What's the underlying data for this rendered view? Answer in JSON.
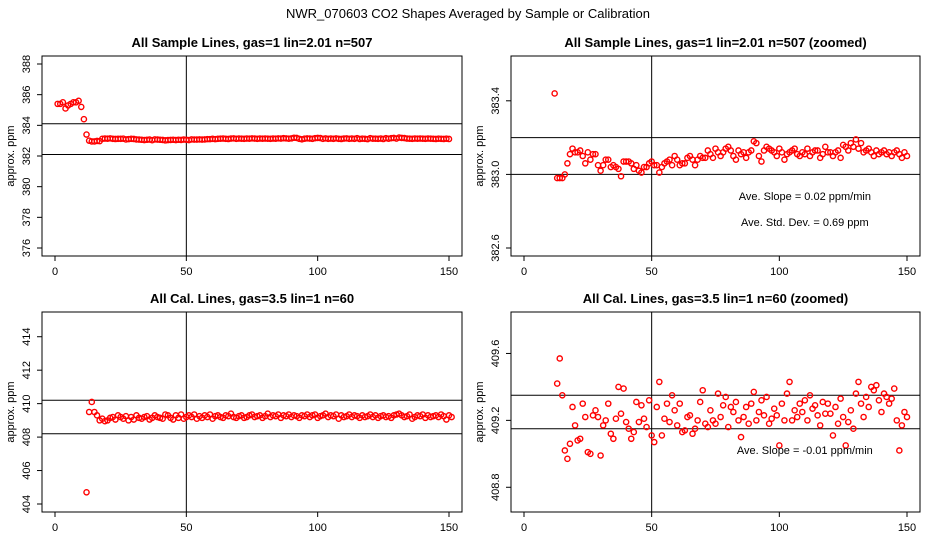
{
  "figure": {
    "title": "NWR_070603  CO2 Shapes Averaged by Sample or Calibration"
  },
  "colors": {
    "points": "#ff0000",
    "lines": "#000000"
  },
  "chart_data": [
    {
      "type": "scatter",
      "title": "All Sample Lines, gas=1 lin=2.01 n=507",
      "ylabel": "approx. ppm",
      "xlim": [
        0,
        150
      ],
      "ylim": [
        376,
        388
      ],
      "xticks": [
        0,
        50,
        100,
        150
      ],
      "yticks": [
        376,
        378,
        380,
        382,
        384,
        386,
        388
      ],
      "ytick_labels": [
        "376",
        "378",
        "380",
        "382",
        "384",
        "386",
        "388"
      ],
      "hlines": [
        384.1,
        382.1
      ],
      "vline": 50,
      "annotations": [],
      "series": [
        {
          "x_start": 1,
          "x_step": 1,
          "y": [
            385.4,
            385.4,
            385.5,
            385.1,
            385.3,
            385.4,
            385.5,
            385.5,
            385.6,
            385.2,
            384.4,
            383.4,
            383.0,
            382.95,
            382.95,
            382.98,
            382.97,
            383.12,
            383.14,
            383.13,
            383.15,
            383.12,
            383.11,
            383.12,
            383.12,
            383.13,
            383.08,
            383.1,
            383.12,
            383.11,
            383.08,
            383.07,
            383.06,
            383.04,
            383.06,
            383.07,
            383.03,
            383.08,
            383.07,
            383.06,
            383.05,
            383.02,
            383.04,
            383.05,
            383.06,
            383.04,
            383.06,
            383.05,
            383.07,
            383.06,
            383.04,
            383.08,
            383.07,
            383.07,
            383.08,
            383.07,
            383.08,
            383.1,
            383.1,
            383.12,
            383.1,
            383.12,
            383.13,
            383.14,
            383.12,
            383.11,
            383.14,
            383.15,
            383.12,
            383.14,
            383.13,
            383.12,
            383.14,
            383.13,
            383.15,
            383.14,
            383.12,
            383.14,
            383.13,
            383.14,
            383.13,
            383.12,
            383.14,
            383.13,
            383.15,
            383.14,
            383.16,
            383.15,
            383.13,
            383.15,
            383.19,
            383.18,
            383.12,
            383.09,
            383.13,
            383.15,
            383.14,
            383.12,
            383.16,
            383.18,
            383.17,
            383.12,
            383.15,
            383.12,
            383.14,
            383.12,
            383.15,
            383.12,
            383.11,
            383.14,
            383.15,
            383.12,
            383.14,
            383.12,
            383.16,
            383.11,
            383.13,
            383.12,
            383.1,
            383.16,
            383.13,
            383.13,
            383.12,
            383.14,
            383.11,
            383.16,
            383.13,
            383.16,
            383.18,
            383.14,
            383.2,
            383.18,
            383.17,
            383.14,
            383.13,
            383.12,
            383.14,
            383.13,
            383.14,
            383.13,
            383.12,
            383.14,
            383.13,
            383.12,
            383.11,
            383.13,
            383.12,
            383.11,
            383.13,
            383.11
          ]
        }
      ]
    },
    {
      "type": "scatter",
      "title": "All Sample Lines, gas=1 lin=2.01 n=507 (zoomed)",
      "ylabel": "approx. ppm",
      "xlim": [
        0,
        150
      ],
      "ylim": [
        382.6,
        383.6
      ],
      "xticks": [
        0,
        50,
        100,
        150
      ],
      "yticks": [
        382.6,
        383.0,
        383.4
      ],
      "ytick_labels": [
        "382.6",
        "383.0",
        "383.4"
      ],
      "hlines": [
        383.2,
        383.0
      ],
      "vline": 50,
      "annotations": [
        {
          "text": "Ave. Slope =  0.02  ppm/min",
          "x": 110,
          "y": 382.86
        },
        {
          "text": "Ave. Std. Dev. =  0.69  ppm",
          "x": 110,
          "y": 382.72
        }
      ],
      "series": [
        {
          "x_start": 12,
          "x_step": 1,
          "y": [
            383.44,
            382.98,
            382.98,
            382.98,
            383.0,
            383.06,
            383.11,
            383.14,
            383.12,
            383.12,
            383.13,
            383.1,
            383.06,
            383.12,
            383.08,
            383.11,
            383.11,
            383.05,
            383.02,
            383.05,
            383.08,
            383.08,
            383.04,
            383.05,
            383.04,
            383.03,
            382.99,
            383.07,
            383.07,
            383.07,
            383.06,
            383.03,
            383.05,
            383.02,
            383.01,
            383.04,
            383.04,
            383.06,
            383.07,
            383.05,
            383.05,
            383.01,
            383.04,
            383.06,
            383.07,
            383.08,
            383.05,
            383.1,
            383.08,
            383.05,
            383.06,
            383.06,
            383.09,
            383.1,
            383.08,
            383.05,
            383.08,
            383.1,
            383.09,
            383.09,
            383.13,
            383.11,
            383.09,
            383.14,
            383.12,
            383.1,
            383.12,
            383.14,
            383.15,
            383.13,
            383.1,
            383.08,
            383.13,
            383.11,
            383.12,
            383.09,
            383.12,
            383.13,
            383.18,
            383.17,
            383.1,
            383.07,
            383.13,
            383.15,
            383.14,
            383.13,
            383.12,
            383.1,
            383.14,
            383.12,
            383.08,
            383.11,
            383.12,
            383.13,
            383.14,
            383.11,
            383.1,
            383.12,
            383.11,
            383.14,
            383.1,
            383.12,
            383.13,
            383.13,
            383.09,
            383.11,
            383.15,
            383.12,
            383.12,
            383.1,
            383.12,
            383.13,
            383.09,
            383.16,
            383.15,
            383.13,
            383.17,
            383.15,
            383.19,
            383.14,
            383.17,
            383.12,
            383.13,
            383.14,
            383.12,
            383.1,
            383.13,
            383.11,
            383.12,
            383.13,
            383.11,
            383.12,
            383.1,
            383.12,
            383.13,
            383.11,
            383.09,
            383.12,
            383.1
          ]
        }
      ]
    },
    {
      "type": "scatter",
      "title": "All Cal. Lines, gas=3.5 lin=1 n=60",
      "ylabel": "approx. ppm",
      "xlim": [
        0,
        150
      ],
      "ylim": [
        404,
        415
      ],
      "xticks": [
        0,
        50,
        100,
        150
      ],
      "yticks": [
        404,
        406,
        408,
        410,
        412,
        414
      ],
      "ytick_labels": [
        "404",
        "406",
        "408",
        "410",
        "412",
        "414"
      ],
      "hlines": [
        410.2,
        408.2
      ],
      "vline": 50,
      "annotations": [],
      "series": [
        {
          "x_start": 12,
          "x_step": 1,
          "y": [
            404.7,
            409.5,
            410.1,
            409.5,
            409.3,
            409.0,
            409.1,
            408.95,
            409.0,
            409.15,
            409.2,
            409.05,
            409.3,
            409.2,
            409.1,
            409.25,
            409.0,
            409.2,
            409.05,
            409.3,
            409.15,
            409.1,
            409.2,
            409.25,
            409.05,
            409.15,
            409.3,
            409.2,
            409.15,
            409.1,
            409.35,
            409.3,
            409.15,
            409.05,
            409.3,
            409.15,
            409.35,
            409.1,
            409.2,
            409.3,
            409.2,
            409.35,
            409.1,
            409.25,
            409.15,
            409.3,
            409.2,
            409.35,
            409.1,
            409.25,
            409.3,
            409.2,
            409.15,
            409.3,
            409.25,
            409.4,
            409.2,
            409.15,
            409.25,
            409.3,
            409.15,
            409.2,
            409.3,
            409.35,
            409.2,
            409.25,
            409.3,
            409.15,
            409.25,
            409.4,
            409.2,
            409.3,
            409.25,
            409.35,
            409.15,
            409.3,
            409.25,
            409.35,
            409.2,
            409.3,
            409.25,
            409.15,
            409.3,
            409.25,
            409.35,
            409.2,
            409.3,
            409.35,
            409.15,
            409.25,
            409.3,
            409.4,
            409.2,
            409.3,
            409.25,
            409.35,
            409.1,
            409.3,
            409.2,
            409.25,
            409.35,
            409.2,
            409.3,
            409.25,
            409.15,
            409.3,
            409.2,
            409.25,
            409.35,
            409.2,
            409.3,
            409.15,
            409.25,
            409.3,
            409.2,
            409.25,
            409.15,
            409.3,
            409.35,
            409.4,
            409.3,
            409.2,
            409.25,
            409.35,
            409.1,
            409.2,
            409.3,
            409.25,
            409.35,
            409.15,
            409.3,
            409.2,
            409.25,
            409.3,
            409.2,
            409.35,
            409.25,
            409.05,
            409.3,
            409.2
          ]
        }
      ]
    },
    {
      "type": "scatter",
      "title": "All Cal. Lines, gas=3.5 lin=1 n=60 (zoomed)",
      "ylabel": "approx. ppm",
      "xlim": [
        0,
        150
      ],
      "ylim": [
        408.7,
        409.8
      ],
      "xticks": [
        0,
        50,
        100,
        150
      ],
      "yticks": [
        408.8,
        409.2,
        409.6
      ],
      "ytick_labels": [
        "408.8",
        "409.2",
        "409.6"
      ],
      "hlines": [
        409.35,
        409.15
      ],
      "vline": 50,
      "annotations": [
        {
          "text": "Ave. Slope =  -0.01  ppm/min",
          "x": 110,
          "y": 409.0
        }
      ],
      "series": [
        {
          "x_start": 13,
          "x_step": 1,
          "y": [
            409.42,
            409.57,
            409.35,
            409.02,
            408.97,
            409.06,
            409.28,
            409.17,
            409.08,
            409.09,
            409.3,
            409.22,
            409.01,
            409.0,
            409.23,
            409.26,
            409.22,
            408.99,
            409.17,
            409.2,
            409.3,
            409.12,
            409.09,
            409.21,
            409.4,
            409.24,
            409.39,
            409.19,
            409.15,
            409.09,
            409.13,
            409.31,
            409.19,
            409.29,
            409.21,
            409.16,
            409.32,
            409.11,
            409.07,
            409.28,
            409.43,
            409.11,
            409.21,
            409.3,
            409.19,
            409.35,
            409.26,
            409.17,
            409.3,
            409.13,
            409.14,
            409.22,
            409.23,
            409.12,
            409.15,
            409.2,
            409.31,
            409.38,
            409.18,
            409.16,
            409.26,
            409.2,
            409.18,
            409.36,
            409.22,
            409.29,
            409.34,
            409.16,
            409.28,
            409.25,
            409.31,
            409.2,
            409.1,
            409.22,
            409.28,
            409.18,
            409.3,
            409.37,
            409.2,
            409.25,
            409.32,
            409.23,
            409.34,
            409.18,
            409.21,
            409.27,
            409.23,
            409.05,
            409.3,
            409.2,
            409.36,
            409.43,
            409.2,
            409.26,
            409.22,
            409.3,
            409.25,
            409.32,
            409.2,
            409.35,
            409.27,
            409.29,
            409.23,
            409.17,
            409.31,
            409.24,
            409.3,
            409.24,
            409.11,
            409.28,
            409.18,
            409.33,
            409.22,
            409.05,
            409.19,
            409.26,
            409.15,
            409.36,
            409.43,
            409.3,
            409.22,
            409.34,
            409.28,
            409.4,
            409.38,
            409.41,
            409.32,
            409.25,
            409.36,
            409.34,
            409.3,
            409.33,
            409.39,
            409.2,
            409.02,
            409.17,
            409.25,
            409.22
          ]
        }
      ]
    }
  ]
}
